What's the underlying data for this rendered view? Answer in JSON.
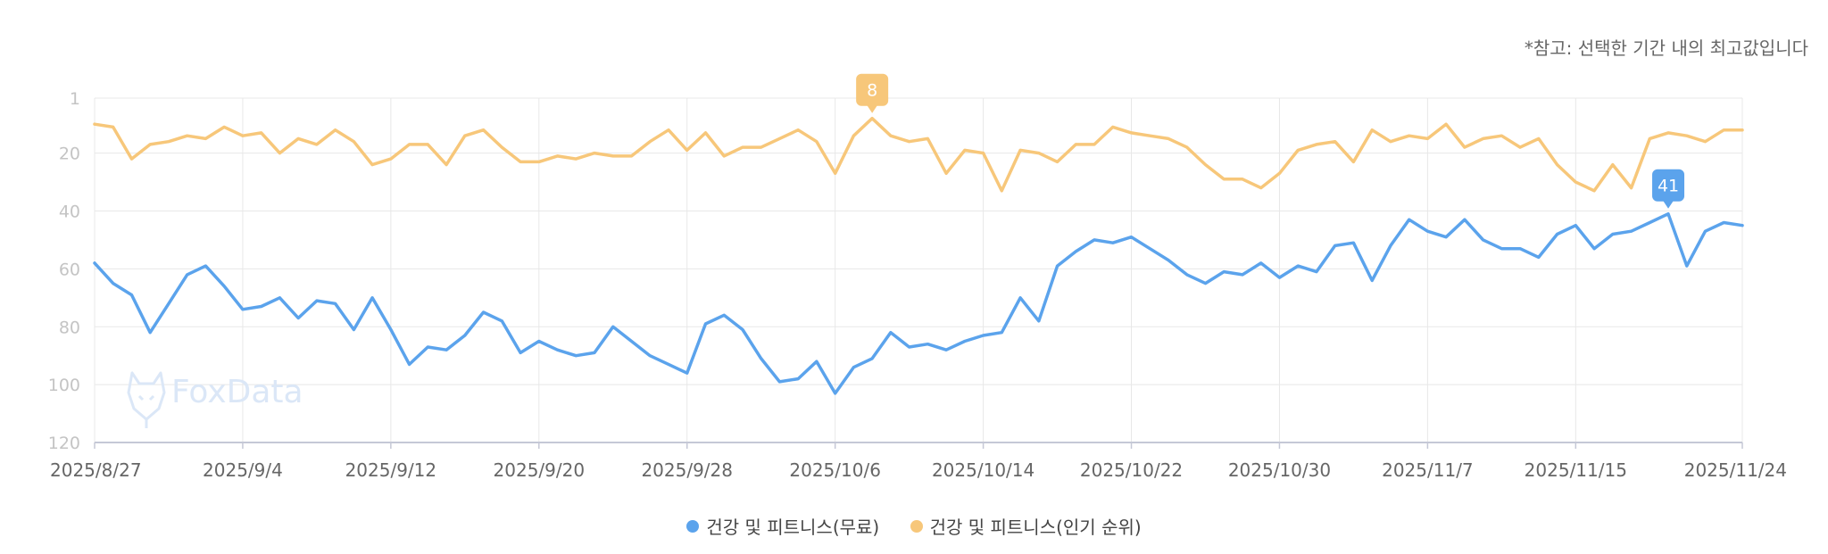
{
  "note": "*참고: 선택한 기간 내의 최고값입니다",
  "watermark": "FoxData",
  "colors": {
    "free": "#5ba3ec",
    "popular": "#f7c77a",
    "grid": "#e8e8e8",
    "axis": "#c5c8d6",
    "tick_text": "#c4c4c4",
    "date_text": "#666666"
  },
  "legend": [
    {
      "label": "건강 및 피트니스(무료)",
      "color": "#5ba3ec"
    },
    {
      "label": "건강 및 피트니스(인기 순위)",
      "color": "#f7c77a"
    }
  ],
  "chart_data": {
    "type": "line",
    "title": "",
    "xlabel": "",
    "ylabel": "",
    "y_reversed": true,
    "ylim": [
      1,
      120
    ],
    "y_ticks": [
      1,
      20,
      40,
      60,
      80,
      100,
      120
    ],
    "x_tick_labels": [
      "2025/8/27",
      "2025/9/4",
      "2025/9/12",
      "2025/9/20",
      "2025/9/28",
      "2025/10/6",
      "2025/10/14",
      "2025/10/22",
      "2025/10/30",
      "2025/11/7",
      "2025/11/15",
      "2025/11/24"
    ],
    "x_start": "2025/8/27",
    "x_end": "2025/11/24",
    "grid": true,
    "legend_position": "bottom",
    "series": [
      {
        "name": "건강 및 피트니스(무료)",
        "color": "#5ba3ec",
        "values": [
          58,
          65,
          69,
          82,
          72,
          62,
          59,
          66,
          74,
          73,
          70,
          77,
          71,
          72,
          81,
          70,
          81,
          93,
          87,
          88,
          83,
          75,
          78,
          89,
          85,
          88,
          90,
          89,
          80,
          85,
          90,
          93,
          96,
          79,
          76,
          81,
          91,
          99,
          98,
          92,
          103,
          94,
          91,
          82,
          87,
          86,
          88,
          85,
          83,
          82,
          70,
          78,
          59,
          54,
          50,
          51,
          49,
          53,
          57,
          62,
          65,
          61,
          62,
          58,
          63,
          59,
          61,
          52,
          51,
          64,
          52,
          43,
          47,
          49,
          43,
          50,
          53,
          53,
          56,
          48,
          45,
          53,
          48,
          47,
          44,
          41,
          59,
          47,
          44,
          45
        ],
        "peak": {
          "value": 41,
          "label": "41",
          "index": 85
        }
      },
      {
        "name": "건강 및 피트니스(인기 순위)",
        "color": "#f7c77a",
        "values": [
          10,
          11,
          22,
          17,
          16,
          14,
          15,
          11,
          14,
          13,
          20,
          15,
          17,
          12,
          16,
          24,
          22,
          17,
          17,
          24,
          14,
          12,
          18,
          23,
          23,
          21,
          22,
          20,
          21,
          21,
          16,
          12,
          19,
          13,
          21,
          18,
          18,
          15,
          12,
          16,
          27,
          14,
          8,
          14,
          16,
          15,
          27,
          19,
          20,
          33,
          19,
          20,
          23,
          17,
          17,
          11,
          13,
          14,
          15,
          18,
          24,
          29,
          29,
          32,
          27,
          19,
          17,
          16,
          23,
          12,
          16,
          14,
          15,
          10,
          18,
          15,
          14,
          18,
          15,
          24,
          30,
          33,
          24,
          32,
          15,
          13,
          14,
          16,
          12,
          12
        ],
        "peak": {
          "value": 8,
          "label": "8",
          "index": 42
        }
      }
    ]
  }
}
